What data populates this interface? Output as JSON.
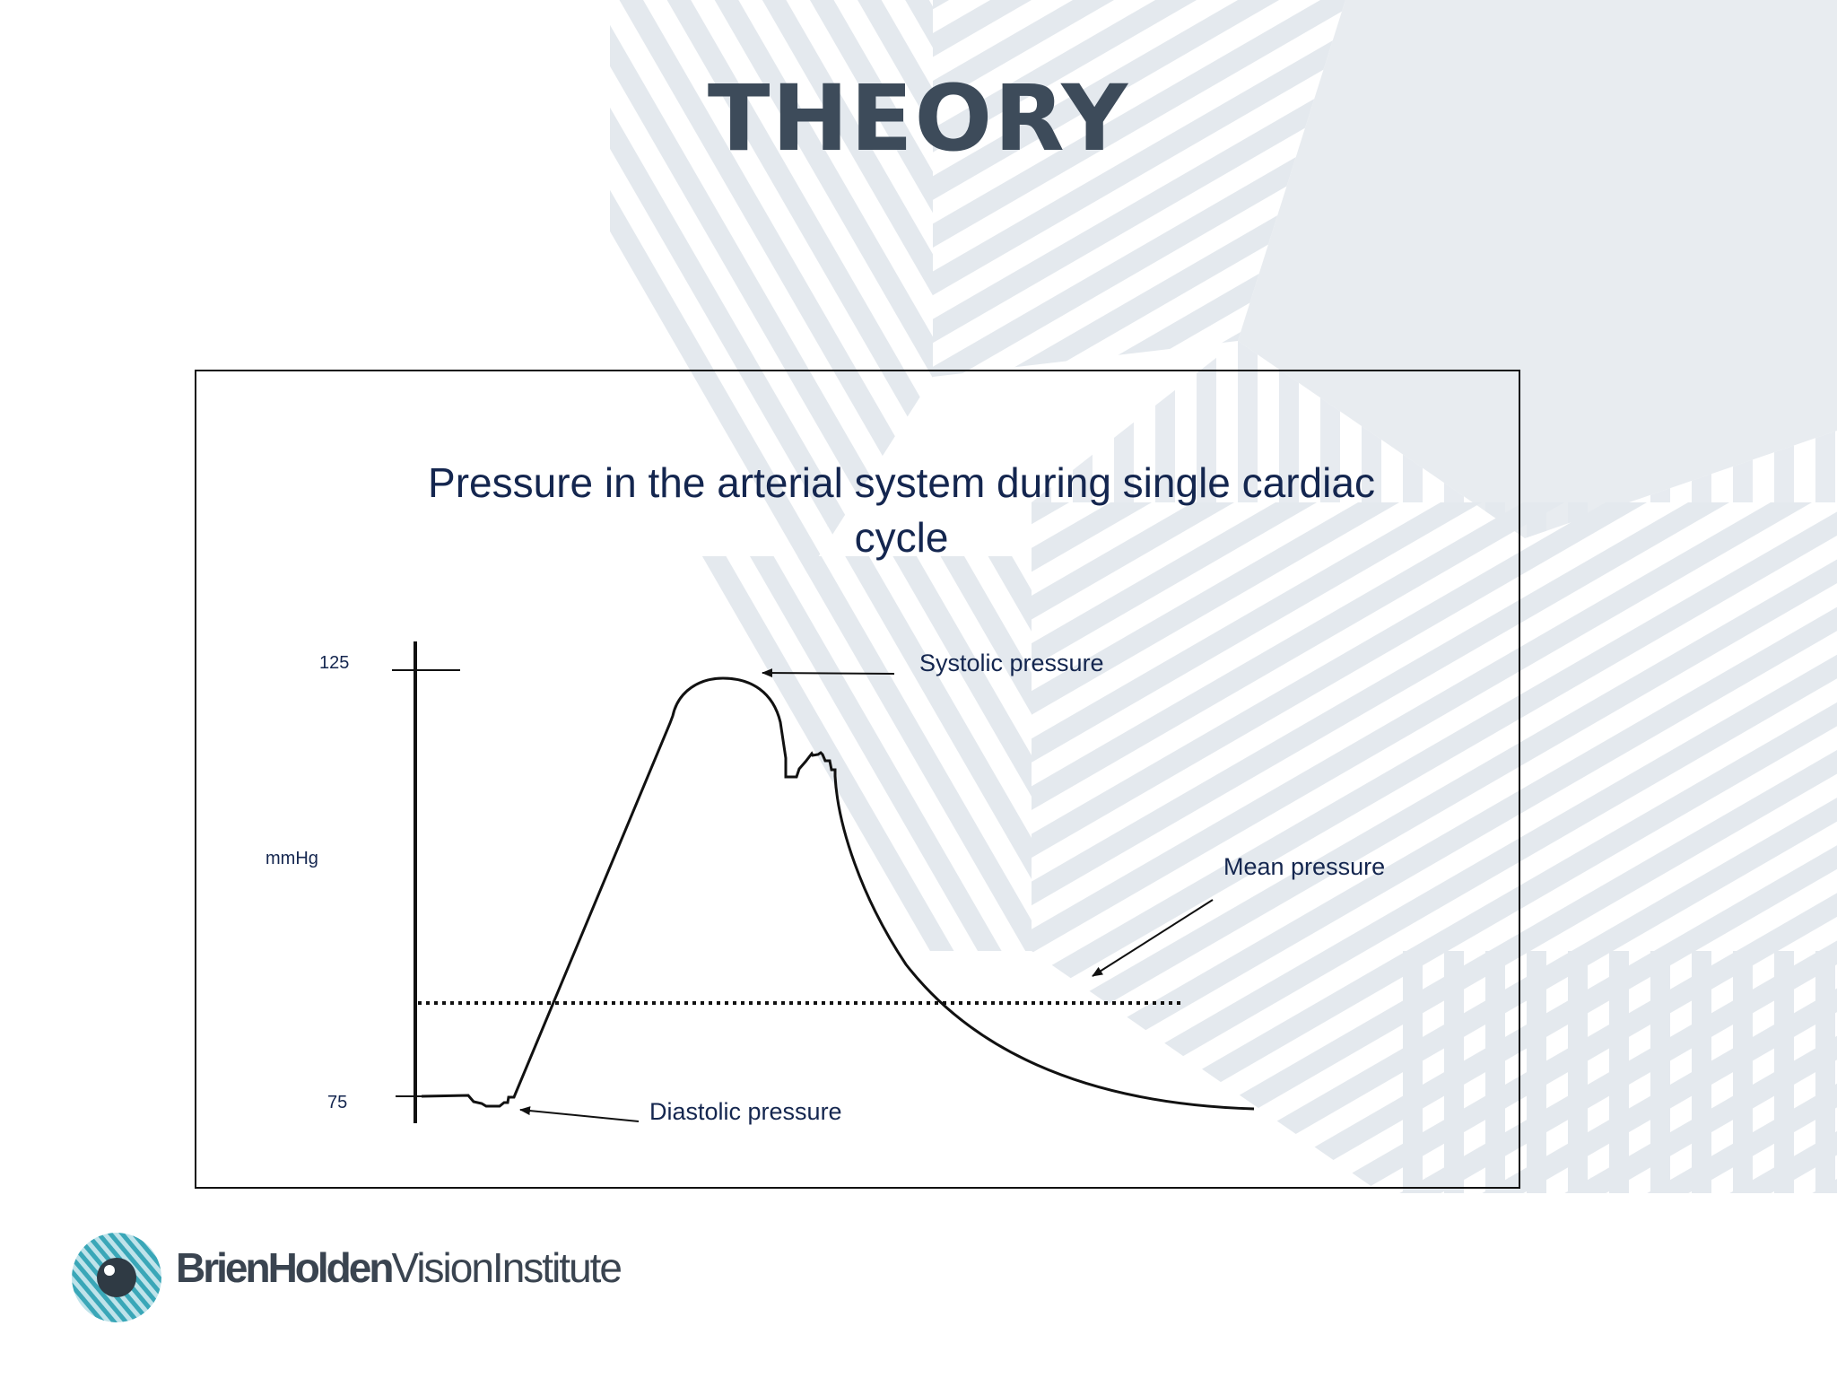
{
  "slide": {
    "title": "THEORY"
  },
  "figure": {
    "title": "Pressure in the arterial system during single cardiac cycle",
    "y_axis_label": "mmHg",
    "ticks": [
      "125",
      "75"
    ],
    "annotations": {
      "systolic": "Systolic pressure",
      "mean": "Mean pressure",
      "diastolic": "Diastolic pressure"
    }
  },
  "footer": {
    "logo_name_bold": "BrienHolden",
    "logo_name_light": "VisionInstitute",
    "logo_icon": "eye-logo-icon"
  },
  "colors": {
    "title": "#3d4b5a",
    "text": "#14264f",
    "pattern": "#dfe5ea",
    "logo_teal": "#3aa7b8"
  }
}
